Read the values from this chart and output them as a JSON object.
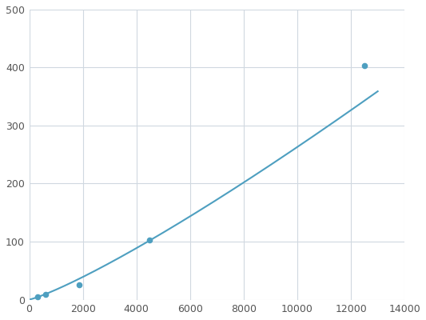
{
  "x_data_points": [
    300,
    600,
    1875,
    4500,
    12500
  ],
  "y_data_points": [
    5,
    9,
    26,
    103,
    403
  ],
  "line_color": "#4e9fc0",
  "marker_color": "#4e9fc0",
  "background_color": "#ffffff",
  "grid_color": "#d0d8e0",
  "xlim": [
    0,
    14000
  ],
  "ylim": [
    0,
    500
  ],
  "xticks": [
    0,
    2000,
    4000,
    6000,
    8000,
    10000,
    12000,
    14000
  ],
  "yticks": [
    0,
    100,
    200,
    300,
    400,
    500
  ],
  "figsize": [
    5.33,
    4.0
  ],
  "dpi": 100
}
